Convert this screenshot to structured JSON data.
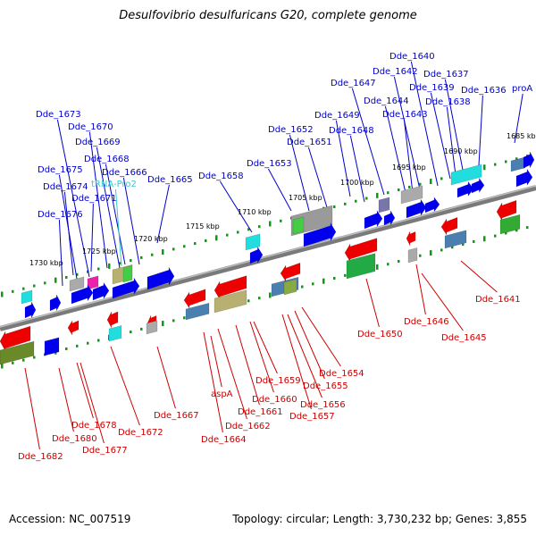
{
  "title": "Desulfovibrio desulfuricans G20, complete genome",
  "footer": {
    "accession": "Accession: NC_007519",
    "summary": "Topology: circular; Length: 3,730,232 bp; Genes: 3,855"
  },
  "colors": {
    "forward_label": "#0000cc",
    "reverse_label": "#cc0000",
    "trna_label": "#33cccc",
    "tick_dots": "#119911",
    "backbone": "#888888"
  },
  "kbp_labels": [
    {
      "text": "1685 kbp"
    },
    {
      "text": "1690 kbp"
    },
    {
      "text": "1695 kbp"
    },
    {
      "text": "1700 kbp"
    },
    {
      "text": "1705 kbp"
    },
    {
      "text": "1710 kbp"
    },
    {
      "text": "1715 kbp"
    },
    {
      "text": "1720 kbp"
    },
    {
      "text": "1725 kbp"
    },
    {
      "text": "1730 kbp"
    }
  ],
  "forward_labels": [
    "proA",
    "Dde_1636",
    "Dde_1637",
    "Dde_1638",
    "Dde_1639",
    "Dde_1640",
    "Dde_1642",
    "Dde_1643",
    "Dde_1644",
    "Dde_1647",
    "Dde_1648",
    "Dde_1649",
    "Dde_1651",
    "Dde_1652",
    "Dde_1653",
    "Dde_1658",
    "Dde_1665",
    "Dde_1666",
    "Dde_1668",
    "Dde_1669",
    "Dde_1670",
    "Dde_1671",
    "Dde_1673",
    "Dde_1674",
    "Dde_1675",
    "Dde_1676"
  ],
  "trna_labels": [
    "tRNA-Pro2"
  ],
  "reverse_labels": [
    "Dde_1641",
    "Dde_1645",
    "Dde_1646",
    "Dde_1650",
    "Dde_1654",
    "Dde_1655",
    "Dde_1656",
    "Dde_1657",
    "Dde_1659",
    "Dde_1660",
    "Dde_1661",
    "Dde_1662",
    "Dde_1664",
    "aspA",
    "Dde_1667",
    "Dde_1672",
    "Dde_1677",
    "Dde_1678",
    "Dde_1680",
    "Dde_1682"
  ]
}
